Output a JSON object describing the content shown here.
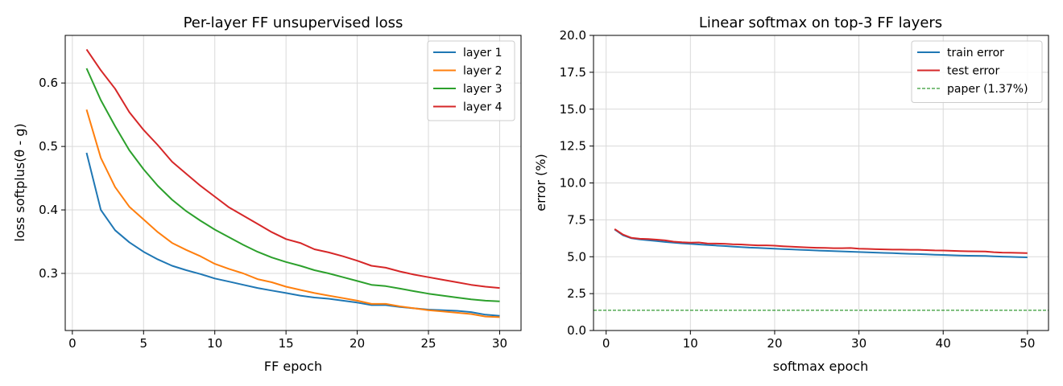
{
  "colors": {
    "layer1": "#1f77b4",
    "layer2": "#ff7f0e",
    "layer3": "#2ca02c",
    "layer4": "#d62728",
    "reference": "#008000"
  },
  "chart_data": [
    {
      "type": "line",
      "title": "Per-layer FF unsupervised loss",
      "xlabel": "FF epoch",
      "ylabel": "loss   softplus(θ - g)",
      "xlim": [
        -0.5,
        31.5
      ],
      "ylim": [
        0.21,
        0.675
      ],
      "xticks": [
        0,
        5,
        10,
        15,
        20,
        25,
        30
      ],
      "yticks": [
        0.3,
        0.4,
        0.5,
        0.6
      ],
      "grid": true,
      "legend": "top-right",
      "x": [
        1,
        2,
        3,
        4,
        5,
        6,
        7,
        8,
        9,
        10,
        11,
        12,
        13,
        14,
        15,
        16,
        17,
        18,
        19,
        20,
        21,
        22,
        23,
        24,
        25,
        26,
        27,
        28,
        29,
        30
      ],
      "series": [
        {
          "name": "layer 1",
          "color": "#1f77b4",
          "values": [
            0.49,
            0.4,
            0.368,
            0.349,
            0.334,
            0.322,
            0.312,
            0.305,
            0.299,
            0.292,
            0.287,
            0.282,
            0.277,
            0.273,
            0.269,
            0.265,
            0.262,
            0.26,
            0.257,
            0.254,
            0.25,
            0.25,
            0.247,
            0.245,
            0.243,
            0.242,
            0.241,
            0.239,
            0.235,
            0.233
          ]
        },
        {
          "name": "layer 2",
          "color": "#ff7f0e",
          "values": [
            0.558,
            0.482,
            0.436,
            0.405,
            0.385,
            0.365,
            0.348,
            0.337,
            0.327,
            0.315,
            0.307,
            0.3,
            0.291,
            0.286,
            0.279,
            0.274,
            0.269,
            0.265,
            0.261,
            0.257,
            0.252,
            0.252,
            0.248,
            0.245,
            0.242,
            0.24,
            0.238,
            0.236,
            0.232,
            0.231
          ]
        },
        {
          "name": "layer 3",
          "color": "#2ca02c",
          "values": [
            0.623,
            0.573,
            0.532,
            0.494,
            0.464,
            0.438,
            0.416,
            0.398,
            0.383,
            0.369,
            0.357,
            0.345,
            0.334,
            0.325,
            0.318,
            0.312,
            0.305,
            0.3,
            0.294,
            0.288,
            0.282,
            0.28,
            0.276,
            0.272,
            0.268,
            0.265,
            0.262,
            0.259,
            0.257,
            0.256
          ]
        },
        {
          "name": "layer 4",
          "color": "#d62728",
          "values": [
            0.653,
            0.62,
            0.591,
            0.554,
            0.526,
            0.502,
            0.476,
            0.457,
            0.438,
            0.421,
            0.404,
            0.391,
            0.378,
            0.365,
            0.354,
            0.348,
            0.338,
            0.333,
            0.327,
            0.32,
            0.312,
            0.309,
            0.303,
            0.298,
            0.294,
            0.29,
            0.286,
            0.282,
            0.279,
            0.277
          ]
        }
      ]
    },
    {
      "type": "line",
      "title": "Linear softmax on top-3 FF layers",
      "xlabel": "softmax epoch",
      "ylabel": "error (%)",
      "xlim": [
        -1.5,
        52.5
      ],
      "ylim": [
        0,
        20
      ],
      "xticks": [
        0,
        10,
        20,
        30,
        40,
        50
      ],
      "yticks": [
        0.0,
        2.5,
        5.0,
        7.5,
        10.0,
        12.5,
        15.0,
        17.5,
        20.0
      ],
      "ytick_labels": [
        "0.0",
        "2.5",
        "5.0",
        "7.5",
        "10.0",
        "12.5",
        "15.0",
        "17.5",
        "20.0"
      ],
      "grid": true,
      "legend": "top-right",
      "x": [
        1,
        2,
        3,
        4,
        5,
        6,
        7,
        8,
        9,
        10,
        11,
        12,
        13,
        14,
        15,
        16,
        17,
        18,
        19,
        20,
        21,
        22,
        23,
        24,
        25,
        26,
        27,
        28,
        29,
        30,
        31,
        32,
        33,
        34,
        35,
        36,
        37,
        38,
        39,
        40,
        41,
        42,
        43,
        44,
        45,
        46,
        47,
        48,
        49,
        50
      ],
      "series": [
        {
          "name": "train error",
          "color": "#1f77b4",
          "values": [
            6.85,
            6.45,
            6.25,
            6.17,
            6.12,
            6.06,
            6.0,
            5.95,
            5.91,
            5.87,
            5.83,
            5.8,
            5.76,
            5.73,
            5.69,
            5.65,
            5.62,
            5.6,
            5.57,
            5.55,
            5.52,
            5.5,
            5.47,
            5.45,
            5.42,
            5.4,
            5.38,
            5.36,
            5.34,
            5.32,
            5.3,
            5.28,
            5.26,
            5.24,
            5.22,
            5.2,
            5.18,
            5.16,
            5.14,
            5.12,
            5.1,
            5.08,
            5.07,
            5.06,
            5.05,
            5.03,
            5.01,
            4.99,
            4.97,
            4.96
          ]
        },
        {
          "name": "test error",
          "color": "#d62728",
          "values": [
            6.88,
            6.5,
            6.28,
            6.22,
            6.2,
            6.16,
            6.11,
            6.02,
            5.98,
            5.95,
            5.97,
            5.9,
            5.89,
            5.88,
            5.84,
            5.83,
            5.8,
            5.77,
            5.77,
            5.75,
            5.71,
            5.68,
            5.65,
            5.63,
            5.61,
            5.6,
            5.58,
            5.58,
            5.59,
            5.55,
            5.53,
            5.51,
            5.5,
            5.48,
            5.48,
            5.47,
            5.47,
            5.45,
            5.43,
            5.42,
            5.4,
            5.38,
            5.37,
            5.36,
            5.35,
            5.31,
            5.28,
            5.27,
            5.26,
            5.24
          ]
        }
      ],
      "reference_line": {
        "name": "paper (1.37%)",
        "y": 1.37,
        "color": "#008000",
        "style": "dashed"
      }
    }
  ]
}
